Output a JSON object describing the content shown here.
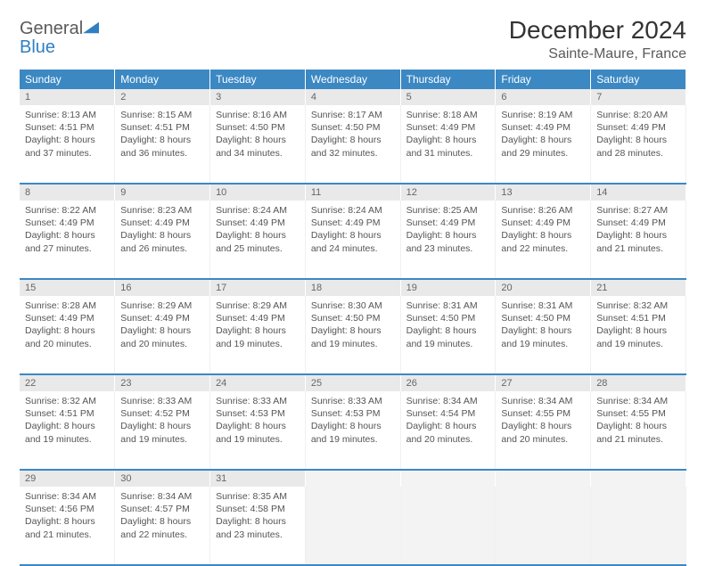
{
  "logo": {
    "word1": "General",
    "word2": "Blue"
  },
  "title": "December 2024",
  "subtitle": "Sainte-Maure, France",
  "colors": {
    "header_bg": "#3b88c3",
    "daynum_bg": "#e9e9e9",
    "accent": "#2f7fc2"
  },
  "day_headers": [
    "Sunday",
    "Monday",
    "Tuesday",
    "Wednesday",
    "Thursday",
    "Friday",
    "Saturday"
  ],
  "weeks": [
    [
      {
        "n": "1",
        "sunrise": "Sunrise: 8:13 AM",
        "sunset": "Sunset: 4:51 PM",
        "day": "Daylight: 8 hours and 37 minutes."
      },
      {
        "n": "2",
        "sunrise": "Sunrise: 8:15 AM",
        "sunset": "Sunset: 4:51 PM",
        "day": "Daylight: 8 hours and 36 minutes."
      },
      {
        "n": "3",
        "sunrise": "Sunrise: 8:16 AM",
        "sunset": "Sunset: 4:50 PM",
        "day": "Daylight: 8 hours and 34 minutes."
      },
      {
        "n": "4",
        "sunrise": "Sunrise: 8:17 AM",
        "sunset": "Sunset: 4:50 PM",
        "day": "Daylight: 8 hours and 32 minutes."
      },
      {
        "n": "5",
        "sunrise": "Sunrise: 8:18 AM",
        "sunset": "Sunset: 4:49 PM",
        "day": "Daylight: 8 hours and 31 minutes."
      },
      {
        "n": "6",
        "sunrise": "Sunrise: 8:19 AM",
        "sunset": "Sunset: 4:49 PM",
        "day": "Daylight: 8 hours and 29 minutes."
      },
      {
        "n": "7",
        "sunrise": "Sunrise: 8:20 AM",
        "sunset": "Sunset: 4:49 PM",
        "day": "Daylight: 8 hours and 28 minutes."
      }
    ],
    [
      {
        "n": "8",
        "sunrise": "Sunrise: 8:22 AM",
        "sunset": "Sunset: 4:49 PM",
        "day": "Daylight: 8 hours and 27 minutes."
      },
      {
        "n": "9",
        "sunrise": "Sunrise: 8:23 AM",
        "sunset": "Sunset: 4:49 PM",
        "day": "Daylight: 8 hours and 26 minutes."
      },
      {
        "n": "10",
        "sunrise": "Sunrise: 8:24 AM",
        "sunset": "Sunset: 4:49 PM",
        "day": "Daylight: 8 hours and 25 minutes."
      },
      {
        "n": "11",
        "sunrise": "Sunrise: 8:24 AM",
        "sunset": "Sunset: 4:49 PM",
        "day": "Daylight: 8 hours and 24 minutes."
      },
      {
        "n": "12",
        "sunrise": "Sunrise: 8:25 AM",
        "sunset": "Sunset: 4:49 PM",
        "day": "Daylight: 8 hours and 23 minutes."
      },
      {
        "n": "13",
        "sunrise": "Sunrise: 8:26 AM",
        "sunset": "Sunset: 4:49 PM",
        "day": "Daylight: 8 hours and 22 minutes."
      },
      {
        "n": "14",
        "sunrise": "Sunrise: 8:27 AM",
        "sunset": "Sunset: 4:49 PM",
        "day": "Daylight: 8 hours and 21 minutes."
      }
    ],
    [
      {
        "n": "15",
        "sunrise": "Sunrise: 8:28 AM",
        "sunset": "Sunset: 4:49 PM",
        "day": "Daylight: 8 hours and 20 minutes."
      },
      {
        "n": "16",
        "sunrise": "Sunrise: 8:29 AM",
        "sunset": "Sunset: 4:49 PM",
        "day": "Daylight: 8 hours and 20 minutes."
      },
      {
        "n": "17",
        "sunrise": "Sunrise: 8:29 AM",
        "sunset": "Sunset: 4:49 PM",
        "day": "Daylight: 8 hours and 19 minutes."
      },
      {
        "n": "18",
        "sunrise": "Sunrise: 8:30 AM",
        "sunset": "Sunset: 4:50 PM",
        "day": "Daylight: 8 hours and 19 minutes."
      },
      {
        "n": "19",
        "sunrise": "Sunrise: 8:31 AM",
        "sunset": "Sunset: 4:50 PM",
        "day": "Daylight: 8 hours and 19 minutes."
      },
      {
        "n": "20",
        "sunrise": "Sunrise: 8:31 AM",
        "sunset": "Sunset: 4:50 PM",
        "day": "Daylight: 8 hours and 19 minutes."
      },
      {
        "n": "21",
        "sunrise": "Sunrise: 8:32 AM",
        "sunset": "Sunset: 4:51 PM",
        "day": "Daylight: 8 hours and 19 minutes."
      }
    ],
    [
      {
        "n": "22",
        "sunrise": "Sunrise: 8:32 AM",
        "sunset": "Sunset: 4:51 PM",
        "day": "Daylight: 8 hours and 19 minutes."
      },
      {
        "n": "23",
        "sunrise": "Sunrise: 8:33 AM",
        "sunset": "Sunset: 4:52 PM",
        "day": "Daylight: 8 hours and 19 minutes."
      },
      {
        "n": "24",
        "sunrise": "Sunrise: 8:33 AM",
        "sunset": "Sunset: 4:53 PM",
        "day": "Daylight: 8 hours and 19 minutes."
      },
      {
        "n": "25",
        "sunrise": "Sunrise: 8:33 AM",
        "sunset": "Sunset: 4:53 PM",
        "day": "Daylight: 8 hours and 19 minutes."
      },
      {
        "n": "26",
        "sunrise": "Sunrise: 8:34 AM",
        "sunset": "Sunset: 4:54 PM",
        "day": "Daylight: 8 hours and 20 minutes."
      },
      {
        "n": "27",
        "sunrise": "Sunrise: 8:34 AM",
        "sunset": "Sunset: 4:55 PM",
        "day": "Daylight: 8 hours and 20 minutes."
      },
      {
        "n": "28",
        "sunrise": "Sunrise: 8:34 AM",
        "sunset": "Sunset: 4:55 PM",
        "day": "Daylight: 8 hours and 21 minutes."
      }
    ],
    [
      {
        "n": "29",
        "sunrise": "Sunrise: 8:34 AM",
        "sunset": "Sunset: 4:56 PM",
        "day": "Daylight: 8 hours and 21 minutes."
      },
      {
        "n": "30",
        "sunrise": "Sunrise: 8:34 AM",
        "sunset": "Sunset: 4:57 PM",
        "day": "Daylight: 8 hours and 22 minutes."
      },
      {
        "n": "31",
        "sunrise": "Sunrise: 8:35 AM",
        "sunset": "Sunset: 4:58 PM",
        "day": "Daylight: 8 hours and 23 minutes."
      },
      null,
      null,
      null,
      null
    ]
  ]
}
